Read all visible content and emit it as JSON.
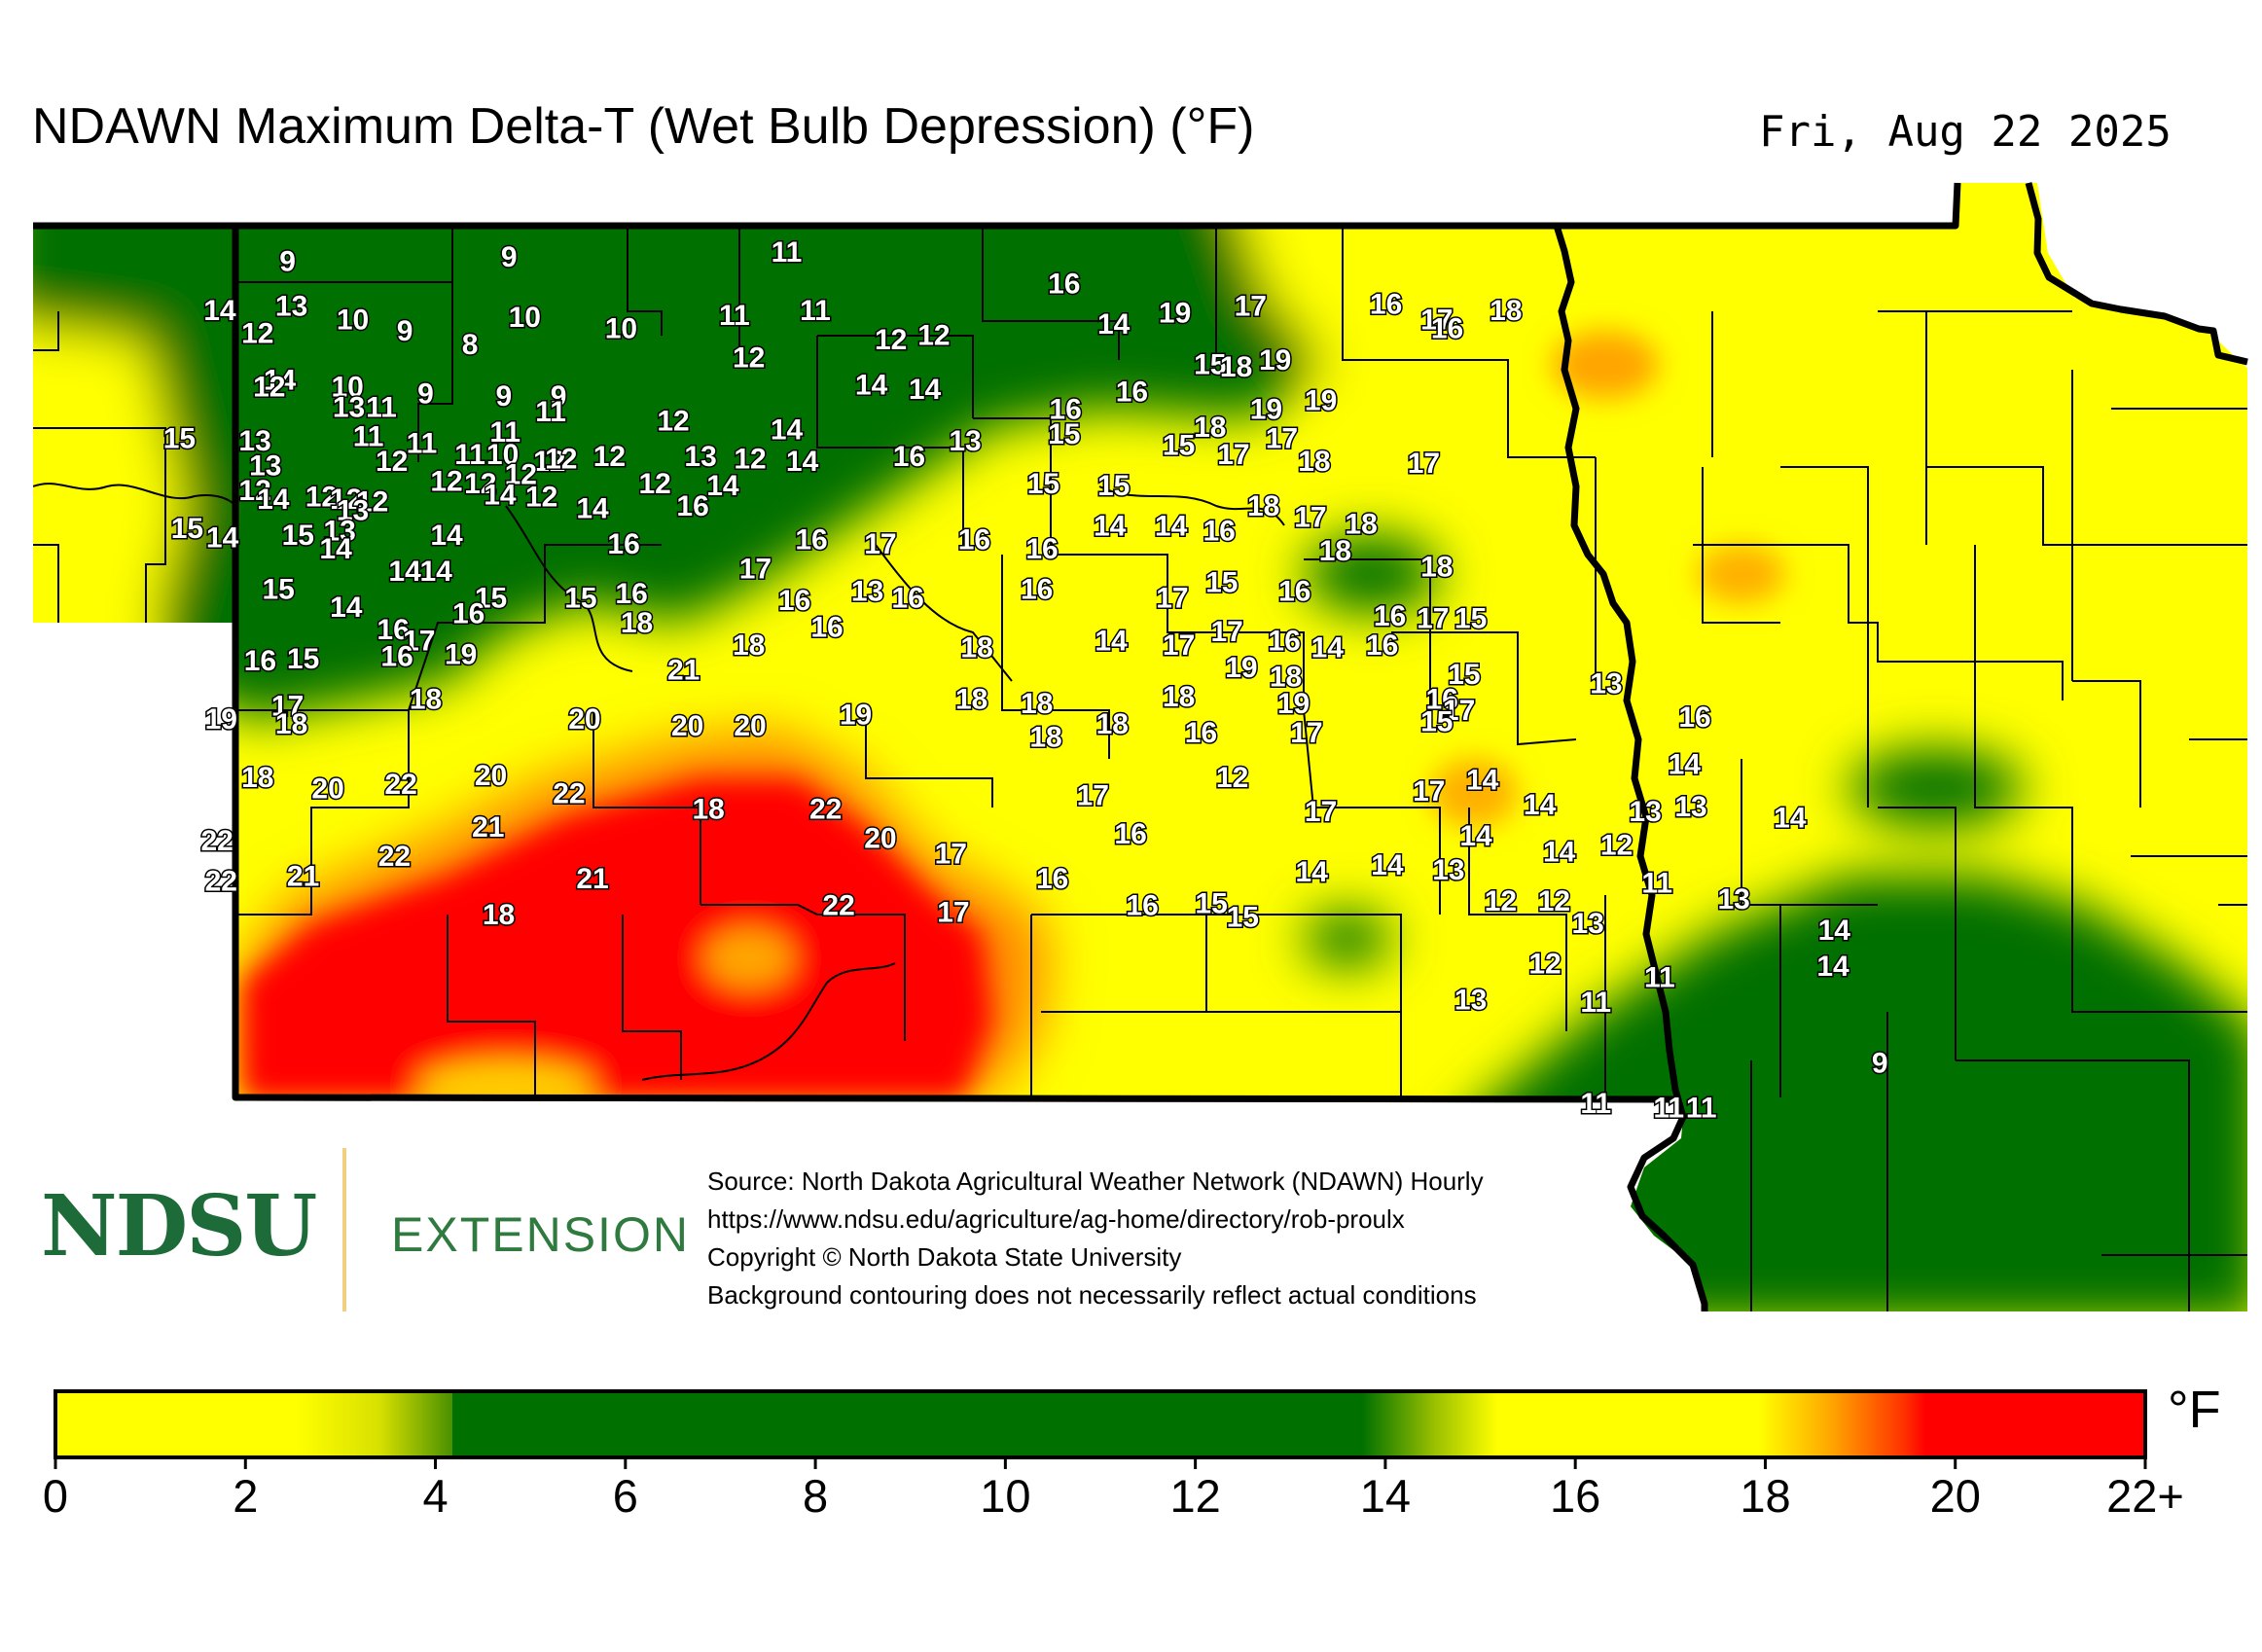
{
  "title": "NDAWN Maximum Delta-T (Wet Bulb Depression) (°F)",
  "date": "Fri, Aug 22 2025",
  "logo": {
    "name": "NDSU",
    "division": "EXTENSION"
  },
  "source_lines": [
    "Source: North Dakota Agricultural Weather Network (NDAWN) Hourly",
    "https://www.ndsu.edu/agriculture/ag-home/directory/rob-proulx",
    "Copyright © North Dakota State University",
    "Background contouring does not necessarily reflect actual conditions"
  ],
  "legend": {
    "unit": "°F",
    "ticks": [
      "0",
      "2",
      "4",
      "6",
      "8",
      "10",
      "12",
      "14",
      "16",
      "18",
      "20",
      "22+"
    ],
    "colors": {
      "yellow": "#ffff00",
      "green": "#007000",
      "orange": "#ff8c00",
      "red": "#ff0000"
    }
  },
  "station_values": [
    {
      "x": -103.7,
      "y": 48.84,
      "v": "9"
    },
    {
      "x": -102.0,
      "y": 48.86,
      "v": "9"
    },
    {
      "x": -99.87,
      "y": 48.88,
      "v": "11"
    },
    {
      "x": -104.22,
      "y": 48.62,
      "v": "14"
    },
    {
      "x": -103.67,
      "y": 48.64,
      "v": "13"
    },
    {
      "x": -103.93,
      "y": 48.52,
      "v": "12"
    },
    {
      "x": -103.2,
      "y": 48.58,
      "v": "10"
    },
    {
      "x": -102.8,
      "y": 48.53,
      "v": "9"
    },
    {
      "x": -102.3,
      "y": 48.47,
      "v": "8"
    },
    {
      "x": -101.88,
      "y": 48.59,
      "v": "10"
    },
    {
      "x": -101.14,
      "y": 48.54,
      "v": "10"
    },
    {
      "x": -100.27,
      "y": 48.6,
      "v": "11"
    },
    {
      "x": -99.65,
      "y": 48.62,
      "v": "11"
    },
    {
      "x": -99.07,
      "y": 48.49,
      "v": "12"
    },
    {
      "x": -98.74,
      "y": 48.51,
      "v": "12"
    },
    {
      "x": -97.74,
      "y": 48.74,
      "v": "16"
    },
    {
      "x": -97.36,
      "y": 48.56,
      "v": "14"
    },
    {
      "x": -96.89,
      "y": 48.61,
      "v": "19"
    },
    {
      "x": -96.31,
      "y": 48.64,
      "v": "17"
    },
    {
      "x": -95.27,
      "y": 48.65,
      "v": "16"
    },
    {
      "x": -94.88,
      "y": 48.58,
      "v": "17"
    },
    {
      "x": -94.35,
      "y": 48.62,
      "v": "18"
    },
    {
      "x": -94.8,
      "y": 48.54,
      "v": "16"
    },
    {
      "x": -103.76,
      "y": 48.31,
      "v": "14"
    },
    {
      "x": -103.84,
      "y": 48.28,
      "v": "12"
    },
    {
      "x": -103.24,
      "y": 48.28,
      "v": "10"
    },
    {
      "x": -102.64,
      "y": 48.25,
      "v": "9"
    },
    {
      "x": -102.04,
      "y": 48.24,
      "v": "9"
    },
    {
      "x": -101.62,
      "y": 48.24,
      "v": "9"
    },
    {
      "x": -100.16,
      "y": 48.41,
      "v": "12"
    },
    {
      "x": -99.22,
      "y": 48.29,
      "v": "14"
    },
    {
      "x": -98.81,
      "y": 48.27,
      "v": "14"
    },
    {
      "x": -97.73,
      "y": 48.18,
      "v": "16"
    },
    {
      "x": -97.22,
      "y": 48.26,
      "v": "16"
    },
    {
      "x": -96.62,
      "y": 48.38,
      "v": "15"
    },
    {
      "x": -96.42,
      "y": 48.37,
      "v": "18"
    },
    {
      "x": -96.12,
      "y": 48.4,
      "v": "19"
    },
    {
      "x": -95.77,
      "y": 48.22,
      "v": "19"
    },
    {
      "x": -96.19,
      "y": 48.18,
      "v": "19"
    },
    {
      "x": -104.53,
      "y": 48.05,
      "v": "15"
    },
    {
      "x": -103.95,
      "y": 48.04,
      "v": "13"
    },
    {
      "x": -103.23,
      "y": 48.19,
      "v": "13"
    },
    {
      "x": -102.98,
      "y": 48.19,
      "v": "11"
    },
    {
      "x": -103.08,
      "y": 48.06,
      "v": "11"
    },
    {
      "x": -102.67,
      "y": 48.03,
      "v": "11"
    },
    {
      "x": -102.3,
      "y": 47.98,
      "v": "11"
    },
    {
      "x": -102.05,
      "y": 47.98,
      "v": "10"
    },
    {
      "x": -102.03,
      "y": 48.08,
      "v": "11"
    },
    {
      "x": -101.69,
      "y": 47.95,
      "v": "12"
    },
    {
      "x": -101.68,
      "y": 48.17,
      "v": "11"
    },
    {
      "x": -101.6,
      "y": 47.96,
      "v": "12"
    },
    {
      "x": -102.9,
      "y": 47.95,
      "v": "12"
    },
    {
      "x": -103.87,
      "y": 47.93,
      "v": "13"
    },
    {
      "x": -100.74,
      "y": 48.13,
      "v": "12"
    },
    {
      "x": -99.87,
      "y": 48.09,
      "v": "14"
    },
    {
      "x": -98.5,
      "y": 48.04,
      "v": "13"
    },
    {
      "x": -97.74,
      "y": 48.07,
      "v": "15"
    },
    {
      "x": -96.86,
      "y": 48.02,
      "v": "15"
    },
    {
      "x": -96.62,
      "y": 48.1,
      "v": "18"
    },
    {
      "x": -96.07,
      "y": 48.05,
      "v": "17"
    },
    {
      "x": -96.44,
      "y": 47.98,
      "v": "17"
    },
    {
      "x": -95.82,
      "y": 47.95,
      "v": "18"
    },
    {
      "x": -94.98,
      "y": 47.94,
      "v": "17"
    },
    {
      "x": -100.53,
      "y": 47.97,
      "v": "13"
    },
    {
      "x": -100.15,
      "y": 47.96,
      "v": "12"
    },
    {
      "x": -99.75,
      "y": 47.95,
      "v": "14"
    },
    {
      "x": -98.93,
      "y": 47.97,
      "v": "16"
    },
    {
      "x": -97.9,
      "y": 47.85,
      "v": "15"
    },
    {
      "x": -97.36,
      "y": 47.84,
      "v": "15"
    },
    {
      "x": -101.23,
      "y": 47.97,
      "v": "12"
    },
    {
      "x": -103.95,
      "y": 47.82,
      "v": "12"
    },
    {
      "x": -103.81,
      "y": 47.78,
      "v": "14"
    },
    {
      "x": -103.44,
      "y": 47.79,
      "v": "12"
    },
    {
      "x": -103.25,
      "y": 47.78,
      "v": "12"
    },
    {
      "x": -103.05,
      "y": 47.77,
      "v": "12"
    },
    {
      "x": -102.48,
      "y": 47.86,
      "v": "12"
    },
    {
      "x": -102.22,
      "y": 47.85,
      "v": "12"
    },
    {
      "x": -101.91,
      "y": 47.89,
      "v": "12"
    },
    {
      "x": -102.07,
      "y": 47.8,
      "v": "14"
    },
    {
      "x": -101.75,
      "y": 47.79,
      "v": "12"
    },
    {
      "x": -101.36,
      "y": 47.74,
      "v": "14"
    },
    {
      "x": -100.88,
      "y": 47.85,
      "v": "12"
    },
    {
      "x": -100.36,
      "y": 47.84,
      "v": "14"
    },
    {
      "x": -100.59,
      "y": 47.75,
      "v": "16"
    },
    {
      "x": -103.2,
      "y": 47.73,
      "v": "13"
    },
    {
      "x": -97.39,
      "y": 47.66,
      "v": "14"
    },
    {
      "x": -96.92,
      "y": 47.66,
      "v": "14"
    },
    {
      "x": -96.55,
      "y": 47.64,
      "v": "16"
    },
    {
      "x": -96.21,
      "y": 47.75,
      "v": "18"
    },
    {
      "x": -95.85,
      "y": 47.7,
      "v": "17"
    },
    {
      "x": -95.46,
      "y": 47.67,
      "v": "18"
    },
    {
      "x": -95.66,
      "y": 47.55,
      "v": "18"
    },
    {
      "x": -94.88,
      "y": 47.48,
      "v": "18"
    },
    {
      "x": -104.47,
      "y": 47.65,
      "v": "15"
    },
    {
      "x": -104.2,
      "y": 47.61,
      "v": "14"
    },
    {
      "x": -103.62,
      "y": 47.62,
      "v": "15"
    },
    {
      "x": -103.3,
      "y": 47.64,
      "v": "13"
    },
    {
      "x": -103.33,
      "y": 47.56,
      "v": "14"
    },
    {
      "x": -102.48,
      "y": 47.62,
      "v": "14"
    },
    {
      "x": -101.12,
      "y": 47.58,
      "v": "16"
    },
    {
      "x": -99.68,
      "y": 47.6,
      "v": "16"
    },
    {
      "x": -99.15,
      "y": 47.58,
      "v": "17"
    },
    {
      "x": -98.43,
      "y": 47.6,
      "v": "16"
    },
    {
      "x": -97.91,
      "y": 47.56,
      "v": "16"
    },
    {
      "x": -102.8,
      "y": 47.46,
      "v": "14"
    },
    {
      "x": -102.56,
      "y": 47.46,
      "v": "14"
    },
    {
      "x": -103.77,
      "y": 47.38,
      "v": "15"
    },
    {
      "x": -102.14,
      "y": 47.34,
      "v": "15"
    },
    {
      "x": -101.45,
      "y": 47.34,
      "v": "15"
    },
    {
      "x": -101.06,
      "y": 47.36,
      "v": "16"
    },
    {
      "x": -100.11,
      "y": 47.47,
      "v": "17"
    },
    {
      "x": -99.25,
      "y": 47.37,
      "v": "13"
    },
    {
      "x": -98.94,
      "y": 47.34,
      "v": "16"
    },
    {
      "x": -97.95,
      "y": 47.38,
      "v": "16"
    },
    {
      "x": -96.91,
      "y": 47.34,
      "v": "17"
    },
    {
      "x": -96.53,
      "y": 47.41,
      "v": "15"
    },
    {
      "x": -95.97,
      "y": 47.37,
      "v": "16"
    },
    {
      "x": -99.81,
      "y": 47.33,
      "v": "16"
    },
    {
      "x": -103.25,
      "y": 47.3,
      "v": "14"
    },
    {
      "x": -102.31,
      "y": 47.27,
      "v": "16"
    },
    {
      "x": -102.89,
      "y": 47.2,
      "v": "16"
    },
    {
      "x": -102.69,
      "y": 47.15,
      "v": "17"
    },
    {
      "x": -102.37,
      "y": 47.09,
      "v": "19"
    },
    {
      "x": -103.58,
      "y": 47.07,
      "v": "15"
    },
    {
      "x": -102.86,
      "y": 47.08,
      "v": "16"
    },
    {
      "x": -103.91,
      "y": 47.06,
      "v": "16"
    },
    {
      "x": -101.02,
      "y": 47.23,
      "v": "18"
    },
    {
      "x": -99.56,
      "y": 47.21,
      "v": "16"
    },
    {
      "x": -98.41,
      "y": 47.12,
      "v": "18"
    },
    {
      "x": -97.38,
      "y": 47.15,
      "v": "14"
    },
    {
      "x": -96.86,
      "y": 47.13,
      "v": "17"
    },
    {
      "x": -96.49,
      "y": 47.19,
      "v": "17"
    },
    {
      "x": -96.05,
      "y": 47.15,
      "v": "16"
    },
    {
      "x": -95.24,
      "y": 47.26,
      "v": "16"
    },
    {
      "x": -94.91,
      "y": 47.25,
      "v": "17"
    },
    {
      "x": -94.62,
      "y": 47.25,
      "v": "15"
    },
    {
      "x": -100.16,
      "y": 47.13,
      "v": "18"
    },
    {
      "x": -100.66,
      "y": 47.02,
      "v": "21"
    },
    {
      "x": -95.72,
      "y": 47.12,
      "v": "14"
    },
    {
      "x": -95.3,
      "y": 47.13,
      "v": "16"
    },
    {
      "x": -96.38,
      "y": 47.03,
      "v": "19"
    },
    {
      "x": -96.04,
      "y": 46.99,
      "v": "18"
    },
    {
      "x": -94.67,
      "y": 47.0,
      "v": "15"
    },
    {
      "x": -93.58,
      "y": 46.96,
      "v": "13"
    },
    {
      "x": -103.7,
      "y": 46.86,
      "v": "17"
    },
    {
      "x": -103.67,
      "y": 46.78,
      "v": "18"
    },
    {
      "x": -104.21,
      "y": 46.8,
      "v": "19"
    },
    {
      "x": -102.64,
      "y": 46.89,
      "v": "18"
    },
    {
      "x": -101.42,
      "y": 46.8,
      "v": "20"
    },
    {
      "x": -100.63,
      "y": 46.77,
      "v": "20"
    },
    {
      "x": -100.15,
      "y": 46.77,
      "v": "20"
    },
    {
      "x": -99.34,
      "y": 46.82,
      "v": "19"
    },
    {
      "x": -98.45,
      "y": 46.89,
      "v": "18"
    },
    {
      "x": -97.95,
      "y": 46.87,
      "v": "18"
    },
    {
      "x": -96.86,
      "y": 46.9,
      "v": "18"
    },
    {
      "x": -97.37,
      "y": 46.78,
      "v": "18"
    },
    {
      "x": -96.69,
      "y": 46.74,
      "v": "16"
    },
    {
      "x": -95.98,
      "y": 46.87,
      "v": "19"
    },
    {
      "x": -95.88,
      "y": 46.74,
      "v": "17"
    },
    {
      "x": -94.84,
      "y": 46.89,
      "v": "16"
    },
    {
      "x": -94.71,
      "y": 46.84,
      "v": "17"
    },
    {
      "x": -94.88,
      "y": 46.79,
      "v": "15"
    },
    {
      "x": -97.88,
      "y": 46.72,
      "v": "18"
    },
    {
      "x": -92.9,
      "y": 46.81,
      "v": "16"
    },
    {
      "x": -103.93,
      "y": 46.54,
      "v": "18"
    },
    {
      "x": -103.39,
      "y": 46.49,
      "v": "20"
    },
    {
      "x": -102.83,
      "y": 46.51,
      "v": "22"
    },
    {
      "x": -102.14,
      "y": 46.55,
      "v": "20"
    },
    {
      "x": -101.54,
      "y": 46.47,
      "v": "22"
    },
    {
      "x": -100.47,
      "y": 46.4,
      "v": "18"
    },
    {
      "x": -99.57,
      "y": 46.4,
      "v": "22"
    },
    {
      "x": -97.52,
      "y": 46.46,
      "v": "17"
    },
    {
      "x": -96.45,
      "y": 46.54,
      "v": "12"
    },
    {
      "x": -95.77,
      "y": 46.39,
      "v": "17"
    },
    {
      "x": -94.94,
      "y": 46.48,
      "v": "17"
    },
    {
      "x": -94.53,
      "y": 46.53,
      "v": "14"
    },
    {
      "x": -94.09,
      "y": 46.42,
      "v": "14"
    },
    {
      "x": -92.98,
      "y": 46.6,
      "v": "14"
    },
    {
      "x": -104.24,
      "y": 46.26,
      "v": "22"
    },
    {
      "x": -102.16,
      "y": 46.32,
      "v": "21"
    },
    {
      "x": -102.88,
      "y": 46.19,
      "v": "22"
    },
    {
      "x": -104.21,
      "y": 46.08,
      "v": "22"
    },
    {
      "x": -103.58,
      "y": 46.1,
      "v": "21"
    },
    {
      "x": -101.36,
      "y": 46.09,
      "v": "21"
    },
    {
      "x": -99.15,
      "y": 46.27,
      "v": "20"
    },
    {
      "x": -97.23,
      "y": 46.29,
      "v": "16"
    },
    {
      "x": -94.58,
      "y": 46.28,
      "v": "14"
    },
    {
      "x": -98.61,
      "y": 46.2,
      "v": "17"
    },
    {
      "x": -93.94,
      "y": 46.21,
      "v": "14"
    },
    {
      "x": -93.28,
      "y": 46.39,
      "v": "13"
    },
    {
      "x": -92.93,
      "y": 46.41,
      "v": "13"
    },
    {
      "x": -92.17,
      "y": 46.36,
      "v": "14"
    },
    {
      "x": -93.5,
      "y": 46.24,
      "v": "12"
    },
    {
      "x": -95.84,
      "y": 46.12,
      "v": "14"
    },
    {
      "x": -95.26,
      "y": 46.15,
      "v": "14"
    },
    {
      "x": -94.79,
      "y": 46.13,
      "v": "13"
    },
    {
      "x": -97.83,
      "y": 46.09,
      "v": "16"
    },
    {
      "x": -93.19,
      "y": 46.07,
      "v": "11"
    },
    {
      "x": -92.6,
      "y": 46.0,
      "v": "13"
    },
    {
      "x": -102.08,
      "y": 45.93,
      "v": "18"
    },
    {
      "x": -99.47,
      "y": 45.97,
      "v": "22"
    },
    {
      "x": -98.59,
      "y": 45.94,
      "v": "17"
    },
    {
      "x": -97.14,
      "y": 45.97,
      "v": "16"
    },
    {
      "x": -96.61,
      "y": 45.98,
      "v": "15"
    },
    {
      "x": -96.37,
      "y": 45.92,
      "v": "15"
    },
    {
      "x": -94.39,
      "y": 45.99,
      "v": "12"
    },
    {
      "x": -93.98,
      "y": 45.99,
      "v": "12"
    },
    {
      "x": -93.72,
      "y": 45.89,
      "v": "13"
    },
    {
      "x": -91.83,
      "y": 45.86,
      "v": "14"
    },
    {
      "x": -94.05,
      "y": 45.71,
      "v": "12"
    },
    {
      "x": -91.84,
      "y": 45.7,
      "v": "14"
    },
    {
      "x": -93.17,
      "y": 45.65,
      "v": "11"
    },
    {
      "x": -94.62,
      "y": 45.55,
      "v": "13"
    },
    {
      "x": -93.66,
      "y": 45.54,
      "v": "11"
    },
    {
      "x": -91.48,
      "y": 45.27,
      "v": "9"
    },
    {
      "x": -93.66,
      "y": 45.09,
      "v": "11"
    },
    {
      "x": -93.1,
      "y": 45.07,
      "v": "11"
    },
    {
      "x": -92.85,
      "y": 45.07,
      "v": "11"
    }
  ]
}
